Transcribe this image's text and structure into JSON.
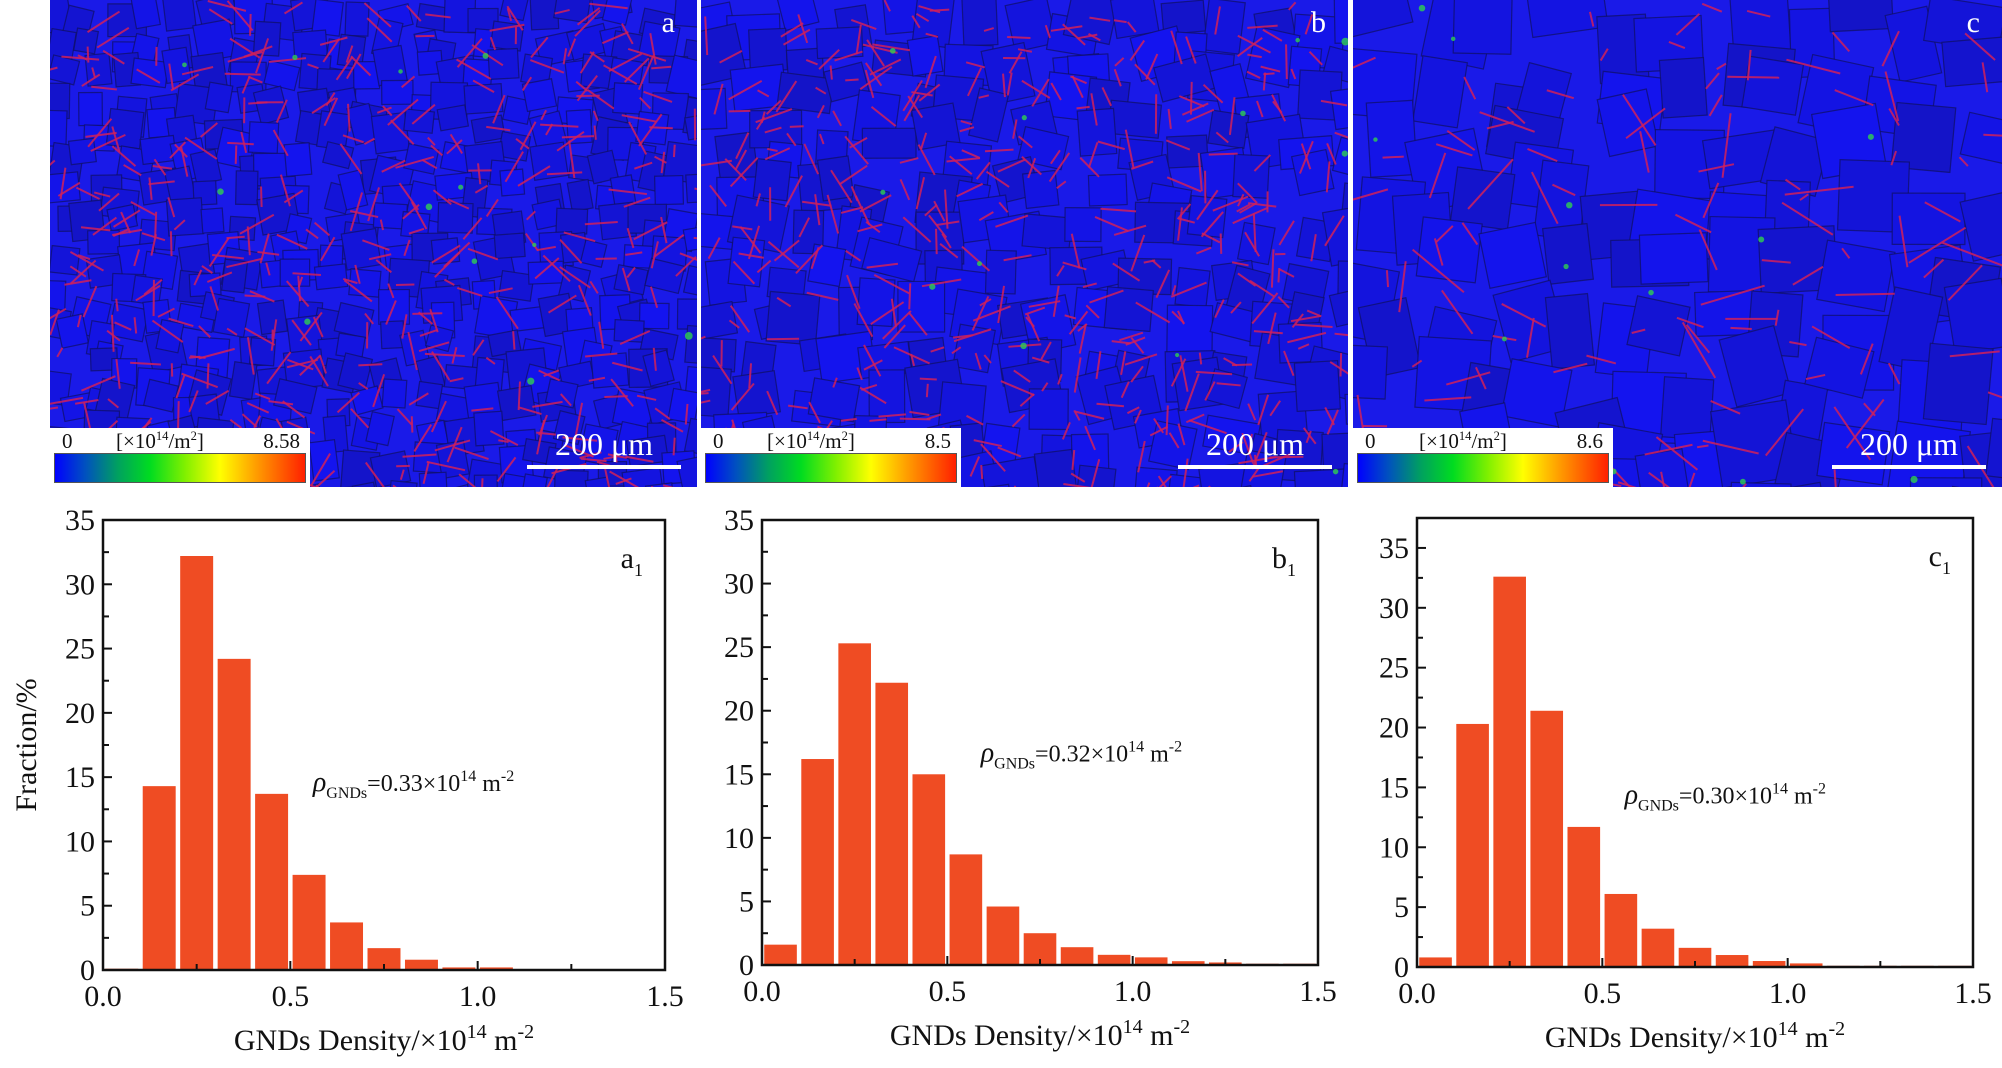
{
  "maps": [
    {
      "label": "a",
      "colorbar": {
        "min": "0",
        "unit_prefix": "[×10",
        "unit_exp": "14",
        "unit_suffix": "/m",
        "unit_exp2": "2",
        "unit_close": "]",
        "max": "8.58"
      },
      "scale_bar": "200 μm"
    },
    {
      "label": "b",
      "colorbar": {
        "min": "0",
        "unit_prefix": "[×10",
        "unit_exp": "14",
        "unit_suffix": "/m",
        "unit_exp2": "2",
        "unit_close": "]",
        "max": "8.5"
      },
      "scale_bar": "200 μm"
    },
    {
      "label": "c",
      "colorbar": {
        "min": "0",
        "unit_prefix": "[×10",
        "unit_exp": "14",
        "unit_suffix": "/m",
        "unit_exp2": "2",
        "unit_close": "]",
        "max": "8.6"
      },
      "scale_bar": "200 μm"
    }
  ],
  "colors": {
    "bar": "#ef4c23",
    "map_base": "#1a1ae8",
    "twin_boundary": "#d0205a",
    "grain_boundary": "#101060"
  },
  "chart_data": [
    {
      "type": "bar",
      "panel_label": "a",
      "panel_sub": "1",
      "title": "",
      "xlabel": "GNDs Density/×10",
      "xlabel_exp": "14",
      "xlabel_unit": " m",
      "xlabel_unit_exp": "-2",
      "ylabel": "Fraction/%",
      "xlim": [
        0,
        1.5
      ],
      "ylim": [
        0,
        35
      ],
      "xticks": [
        "0.0",
        "0.5",
        "1.0",
        "1.5"
      ],
      "yticks": [
        "0",
        "5",
        "10",
        "15",
        "20",
        "25",
        "30",
        "35"
      ],
      "bin_width": 0.1,
      "x": [
        0.05,
        0.15,
        0.25,
        0.35,
        0.45,
        0.55,
        0.65,
        0.75,
        0.85,
        0.95,
        1.05
      ],
      "values": [
        0.1,
        14.3,
        32.2,
        24.2,
        13.7,
        7.4,
        3.7,
        1.7,
        0.8,
        0.2,
        0.2
      ],
      "annotation": {
        "symbol": "ρ",
        "sub": "GNDs",
        "text": "=0.33×10",
        "exp": "14",
        "unit": " m",
        "unit_exp": "-2"
      }
    },
    {
      "type": "bar",
      "panel_label": "b",
      "panel_sub": "1",
      "title": "",
      "xlabel": "GNDs Density/×10",
      "xlabel_exp": "14",
      "xlabel_unit": " m",
      "xlabel_unit_exp": "-2",
      "ylabel": "",
      "xlim": [
        0,
        1.5
      ],
      "ylim": [
        0,
        35
      ],
      "xticks": [
        "0.0",
        "0.5",
        "1.0",
        "1.5"
      ],
      "yticks": [
        "0",
        "5",
        "10",
        "15",
        "20",
        "25",
        "30",
        "35"
      ],
      "bin_width": 0.1,
      "x": [
        0.05,
        0.15,
        0.25,
        0.35,
        0.45,
        0.55,
        0.65,
        0.75,
        0.85,
        0.95,
        1.05,
        1.15,
        1.25,
        1.35,
        1.45
      ],
      "values": [
        1.6,
        16.2,
        25.3,
        22.2,
        15.0,
        8.7,
        4.6,
        2.5,
        1.4,
        0.8,
        0.6,
        0.3,
        0.2,
        0.1,
        0.1
      ],
      "annotation": {
        "symbol": "ρ",
        "sub": "GNDs",
        "text": "=0.32×10",
        "exp": "14",
        "unit": " m",
        "unit_exp": "-2"
      }
    },
    {
      "type": "bar",
      "panel_label": "c",
      "panel_sub": "1",
      "title": "",
      "xlabel": "GNDs Density/×10",
      "xlabel_exp": "14",
      "xlabel_unit": " m",
      "xlabel_unit_exp": "-2",
      "ylabel": "",
      "xlim": [
        0,
        1.5
      ],
      "ylim": [
        0,
        37.5
      ],
      "xticks": [
        "0.0",
        "0.5",
        "1.0",
        "1.5"
      ],
      "yticks": [
        "0",
        "5",
        "10",
        "15",
        "20",
        "25",
        "30",
        "35"
      ],
      "bin_width": 0.1,
      "x": [
        0.05,
        0.15,
        0.25,
        0.35,
        0.45,
        0.55,
        0.65,
        0.75,
        0.85,
        0.95,
        1.05,
        1.15,
        1.25,
        1.35,
        1.45
      ],
      "values": [
        0.8,
        20.3,
        32.6,
        21.4,
        11.7,
        6.1,
        3.2,
        1.6,
        1.0,
        0.5,
        0.3,
        0.1,
        0.1,
        0.1,
        0.1
      ],
      "annotation": {
        "symbol": "ρ",
        "sub": "GNDs",
        "text": "=0.30×10",
        "exp": "14",
        "unit": " m",
        "unit_exp": "-2"
      }
    }
  ]
}
